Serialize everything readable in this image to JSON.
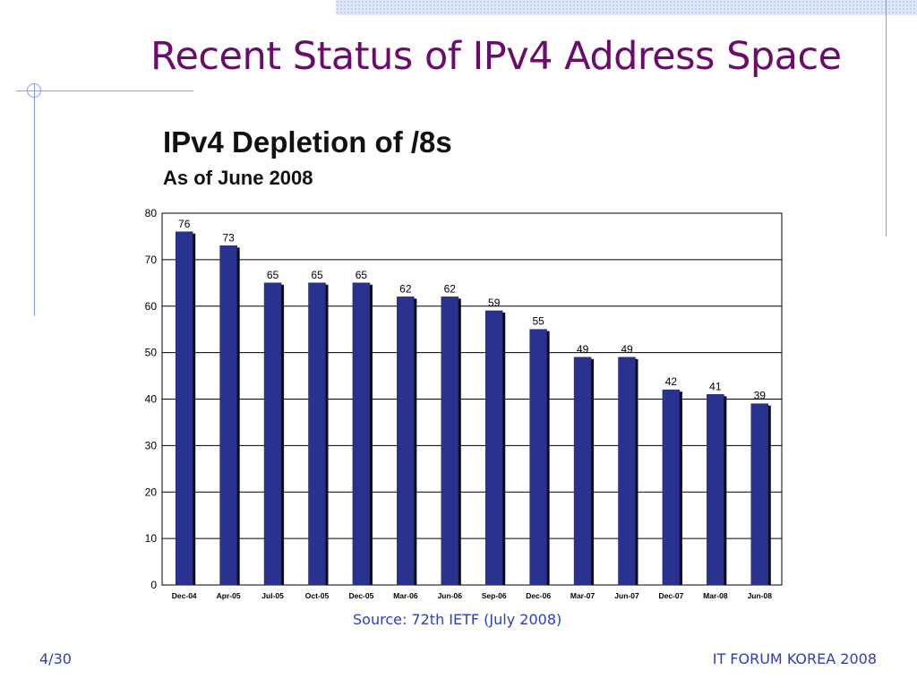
{
  "slide": {
    "title": "Recent Status of IPv4 Address Space",
    "source": "Source: 72th IETF (July 2008)",
    "page_number": "4/30",
    "footer_org": "IT FORUM KOREA 2008"
  },
  "colors": {
    "title": "#6b0b6b",
    "bar": "#2a3290",
    "bar_shadow": "#0d0d0d",
    "footer_text": "#2b3fb8",
    "decoration": "#8b9be3"
  },
  "chart_data": {
    "type": "bar",
    "title": "IPv4 Depletion of /8s",
    "subtitle": "As of June 2008",
    "categories": [
      "Dec-04",
      "Apr-05",
      "Jul-05",
      "Oct-05",
      "Dec-05",
      "Mar-06",
      "Jun-06",
      "Sep-06",
      "Dec-06",
      "Mar-07",
      "Jun-07",
      "Dec-07",
      "Mar-08",
      "Jun-08"
    ],
    "values": [
      76,
      73,
      65,
      65,
      65,
      62,
      62,
      59,
      55,
      49,
      49,
      42,
      41,
      39
    ],
    "ylim": [
      0,
      80
    ],
    "yticks": [
      0,
      10,
      20,
      30,
      40,
      50,
      60,
      70,
      80
    ],
    "grid": true,
    "xlabel": "",
    "ylabel": ""
  }
}
